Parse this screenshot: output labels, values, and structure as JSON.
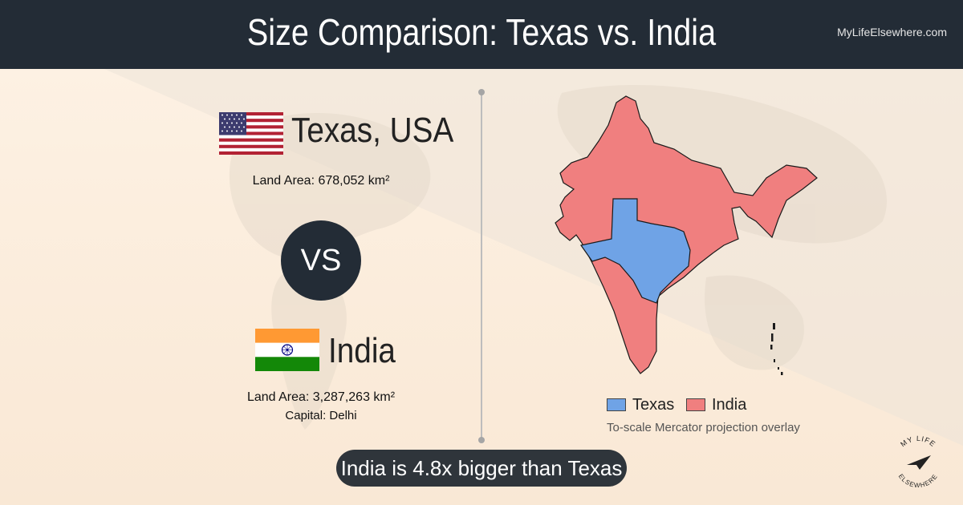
{
  "header": {
    "title": "Size Comparison: Texas vs. India",
    "site": "MyLifeElsewhere.com"
  },
  "place1": {
    "name": "Texas, USA",
    "area_label": "Land Area: 678,052 km²",
    "flag": "us-flag"
  },
  "vs_label": "VS",
  "place2": {
    "name": "India",
    "area_label": "Land Area: 3,287,263 km²",
    "capital_label": "Capital: Delhi",
    "flag": "india-flag"
  },
  "legend": [
    {
      "label": "Texas",
      "color": "#6fa3e6"
    },
    {
      "label": "India",
      "color": "#f07f7f"
    }
  ],
  "map_note": "To-scale Mercator projection overlay",
  "comparison": "India is 4.8x bigger than Texas",
  "logo": {
    "line1": "MY LIFE",
    "line2": "ELSEWHERE"
  },
  "colors": {
    "header": "#232c36",
    "texas": "#6fa3e6",
    "india": "#f07f7f",
    "pill": "#2f353b"
  }
}
